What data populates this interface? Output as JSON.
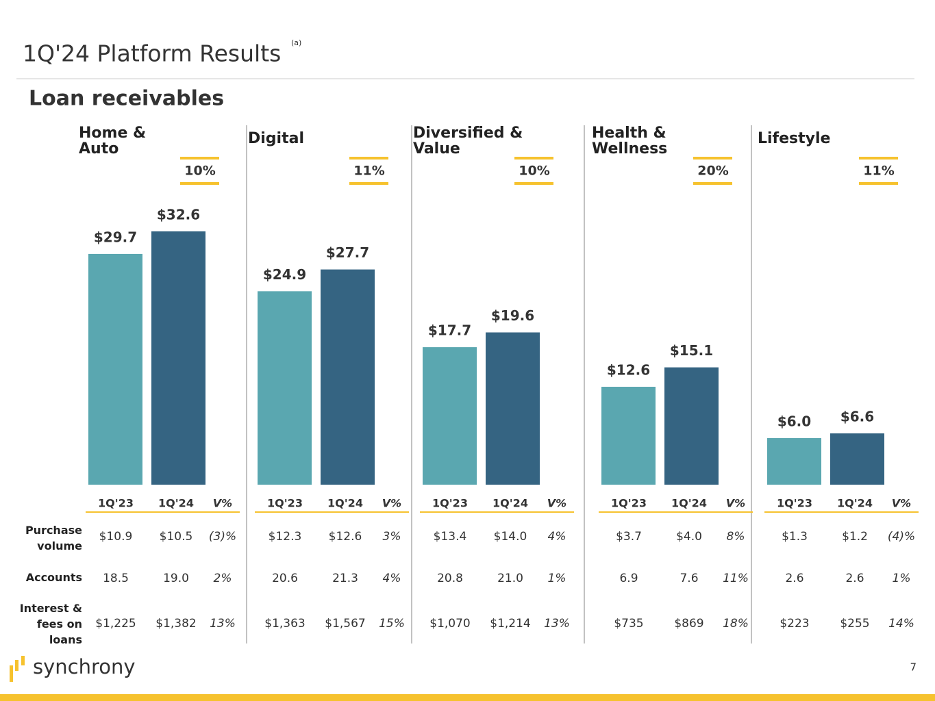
{
  "title": "1Q'24 Platform Results",
  "title_note": "(a)",
  "subtitle": "Loan receivables",
  "row_labels": [
    "Purchase volume",
    "Accounts",
    "Interest & fees on loans"
  ],
  "brand": "synchrony",
  "page_number": "7",
  "chart_data": [
    {
      "type": "bar",
      "title": "Home & Auto",
      "annotation": "10%",
      "categories": [
        null,
        null
      ],
      "values": [
        29.7,
        32.6
      ],
      "value_labels": [
        "$29.7",
        "$32.6"
      ],
      "colors": [
        "#5aa7b0",
        "#356482"
      ],
      "table": {
        "columns": [
          "1Q'23",
          "1Q'24",
          "V%"
        ],
        "rows": [
          [
            "$10.9",
            "$10.5",
            "(3)%"
          ],
          [
            "18.5",
            "19.0",
            "2%"
          ],
          [
            "$1,225",
            "$1,382",
            "13%"
          ]
        ]
      }
    },
    {
      "type": "bar",
      "title": "Digital",
      "annotation": "11%",
      "categories": [
        null,
        null
      ],
      "values": [
        24.9,
        27.7
      ],
      "value_labels": [
        "$24.9",
        "$27.7"
      ],
      "colors": [
        "#5aa7b0",
        "#356482"
      ],
      "table": {
        "columns": [
          "1Q'23",
          "1Q'24",
          "V%"
        ],
        "rows": [
          [
            "$12.3",
            "$12.6",
            "3%"
          ],
          [
            "20.6",
            "21.3",
            "4%"
          ],
          [
            "$1,363",
            "$1,567",
            "15%"
          ]
        ]
      }
    },
    {
      "type": "bar",
      "title": "Diversified & Value",
      "annotation": "10%",
      "categories": [
        null,
        null
      ],
      "values": [
        17.7,
        19.6
      ],
      "value_labels": [
        "$17.7",
        "$19.6"
      ],
      "colors": [
        "#5aa7b0",
        "#356482"
      ],
      "table": {
        "columns": [
          "1Q'23",
          "1Q'24",
          "V%"
        ],
        "rows": [
          [
            "$13.4",
            "$14.0",
            "4%"
          ],
          [
            "20.8",
            "21.0",
            "1%"
          ],
          [
            "$1,070",
            "$1,214",
            "13%"
          ]
        ]
      }
    },
    {
      "type": "bar",
      "title": "Health & Wellness",
      "annotation": "20%",
      "categories": [
        null,
        null
      ],
      "values": [
        12.6,
        15.1
      ],
      "value_labels": [
        "$12.6",
        "$15.1"
      ],
      "colors": [
        "#5aa7b0",
        "#356482"
      ],
      "table": {
        "columns": [
          "1Q'23",
          "1Q'24",
          "V%"
        ],
        "rows": [
          [
            "$3.7",
            "$4.0",
            "8%"
          ],
          [
            "6.9",
            "7.6",
            "11%"
          ],
          [
            "$735",
            "$869",
            "18%"
          ]
        ]
      }
    },
    {
      "type": "bar",
      "title": "Lifestyle",
      "annotation": "11%",
      "categories": [
        null,
        null
      ],
      "values": [
        6.0,
        6.6
      ],
      "value_labels": [
        "$6.0",
        "$6.6"
      ],
      "colors": [
        "#5aa7b0",
        "#356482"
      ],
      "table": {
        "columns": [
          "1Q'23",
          "1Q'24",
          "V%"
        ],
        "rows": [
          [
            "$1.3",
            "$1.2",
            "(4)%"
          ],
          [
            "2.6",
            "2.6",
            "1%"
          ],
          [
            "$223",
            "$255",
            "14%"
          ]
        ]
      }
    }
  ]
}
